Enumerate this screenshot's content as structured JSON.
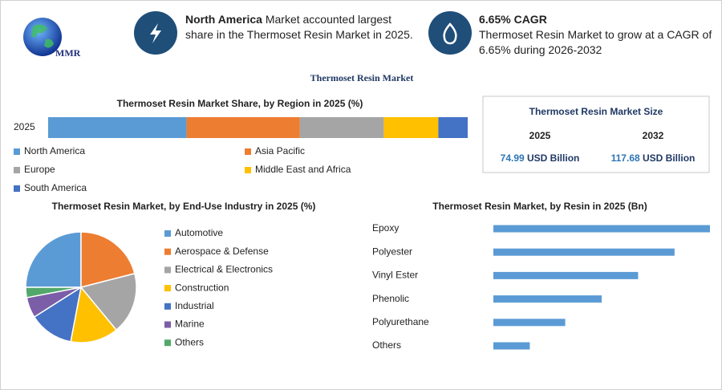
{
  "logo": "MMR",
  "highlights": [
    {
      "bold": "North America",
      "text": "Market accounted largest share in the Thermoset Resin Market in 2025."
    },
    {
      "bold": "6.65% CAGR",
      "text": "Thermoset Resin Market to grow at a CAGR of 6.65% during 2026-2032"
    }
  ],
  "title": "Thermoset Resin Market",
  "market_size": {
    "title": "Thermoset Resin Market Size",
    "years": [
      "2025",
      "2032"
    ],
    "values": [
      74.99,
      117.68
    ],
    "unit": "USD Billion"
  },
  "chart_data": [
    {
      "type": "bar",
      "orientation": "horizontal",
      "stacked": true,
      "title": "Thermoset Resin Market Share, by Region in 2025 (%)",
      "categories": [
        "2025"
      ],
      "series": [
        {
          "name": "North America",
          "color": "#5b9bd5",
          "values": [
            33
          ]
        },
        {
          "name": "Asia Pacific",
          "color": "#ed7d31",
          "values": [
            27
          ]
        },
        {
          "name": "Europe",
          "color": "#a5a5a5",
          "values": [
            20
          ]
        },
        {
          "name": "Middle East and Africa",
          "color": "#ffc000",
          "values": [
            13
          ]
        },
        {
          "name": "South America",
          "color": "#4472c4",
          "values": [
            7
          ]
        }
      ]
    },
    {
      "type": "pie",
      "title": "Thermoset Resin Market, by End-Use Industry in 2025 (%)",
      "categories": [
        "Automotive",
        "Aerospace & Defense",
        "Electrical & Electronics",
        "Construction",
        "Industrial",
        "Marine",
        "Others"
      ],
      "values": [
        25,
        21,
        18,
        14,
        13,
        6,
        3
      ],
      "colors": [
        "#5b9bd5",
        "#ed7d31",
        "#a5a5a5",
        "#ffc000",
        "#4472c4",
        "#7b5ea7",
        "#52a86b"
      ]
    },
    {
      "type": "bar",
      "orientation": "horizontal",
      "title": "Thermoset Resin Market, by Resin in 2025 (Bn)",
      "categories": [
        "Epoxy",
        "Polyester",
        "Vinyl Ester",
        "Phenolic",
        "Polyurethane",
        "Others"
      ],
      "values": [
        21.4,
        17.9,
        14.3,
        10.7,
        7.1,
        3.6
      ],
      "color": "#5b9bd5"
    }
  ]
}
